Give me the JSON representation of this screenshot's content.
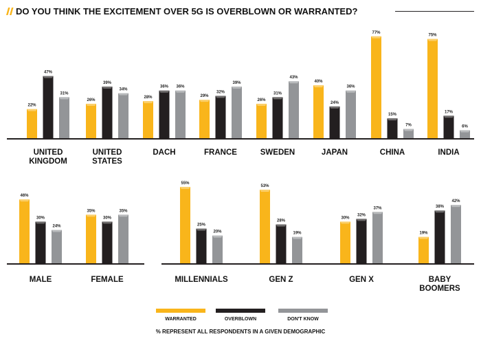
{
  "title": "DO YOU THINK THE EXCITEMENT OVER 5G IS OVERBLOWN OR WARRANTED?",
  "footnote": "% REPRESENT ALL RESPONDENTS IN A GIVEN DEMOGRAPHIC",
  "colors": {
    "warranted": "#F9B51B",
    "overblown": "#231F20",
    "dont_know": "#939598",
    "axis": "#231F20",
    "title_accent": "#F9B51B"
  },
  "legend": [
    "WARRANTED",
    "OVERBLOWN",
    "DON'T KNOW"
  ],
  "chart_data": [
    {
      "type": "bar",
      "name": "countries",
      "series": [
        {
          "name": "WARRANTED",
          "values": [
            22,
            26,
            28,
            29,
            26,
            40,
            77,
            75
          ]
        },
        {
          "name": "OVERBLOWN",
          "values": [
            47,
            39,
            36,
            32,
            31,
            24,
            15,
            17
          ]
        },
        {
          "name": "DON'T KNOW",
          "values": [
            31,
            34,
            36,
            39,
            43,
            36,
            7,
            6
          ]
        }
      ],
      "categories": [
        [
          "UNITED",
          "KINGDOM"
        ],
        [
          "UNITED",
          "STATES"
        ],
        [
          "DACH"
        ],
        [
          "FRANCE"
        ],
        [
          "SWEDEN"
        ],
        [
          "JAPAN"
        ],
        [
          "CHINA"
        ],
        [
          "INDIA"
        ]
      ],
      "labels": [
        [
          "22%",
          "26%",
          "28%",
          "29%",
          "26%",
          "40%",
          "77%",
          "75%"
        ],
        [
          "47%",
          "39%",
          "36%",
          "32%",
          "31%",
          "24%",
          "15%",
          "17%"
        ],
        [
          "31%",
          "34%",
          "36%",
          "39%",
          "43%",
          "36%",
          "7%",
          "6%"
        ]
      ],
      "ylim": [
        0,
        80
      ]
    },
    {
      "type": "bar",
      "name": "gender",
      "series": [
        {
          "name": "WARRANTED",
          "values": [
            46,
            35
          ]
        },
        {
          "name": "OVERBLOWN",
          "values": [
            30,
            30
          ]
        },
        {
          "name": "DON'T KNOW",
          "values": [
            24,
            35
          ]
        }
      ],
      "categories": [
        [
          "MALE"
        ],
        [
          "FEMALE"
        ]
      ],
      "labels": [
        [
          "46%",
          "35%"
        ],
        [
          "30%",
          "30%"
        ],
        [
          "24%",
          "35%"
        ]
      ],
      "ylim": [
        0,
        60
      ]
    },
    {
      "type": "bar",
      "name": "generation",
      "series": [
        {
          "name": "WARRANTED",
          "values": [
            55,
            53,
            30,
            19
          ]
        },
        {
          "name": "OVERBLOWN",
          "values": [
            25,
            28,
            32,
            38
          ]
        },
        {
          "name": "DON'T KNOW",
          "values": [
            20,
            19,
            37,
            42
          ]
        }
      ],
      "categories": [
        [
          "MILLENNIALS"
        ],
        [
          "GEN Z"
        ],
        [
          "GEN X"
        ],
        [
          "BABY",
          "BOOMERS"
        ]
      ],
      "labels": [
        [
          "55%",
          "53%",
          "30%",
          "19%"
        ],
        [
          "25%",
          "28%",
          "32%",
          "38%"
        ],
        [
          "20%",
          "19%",
          "37%",
          "42%"
        ]
      ],
      "ylim": [
        0,
        60
      ]
    }
  ]
}
